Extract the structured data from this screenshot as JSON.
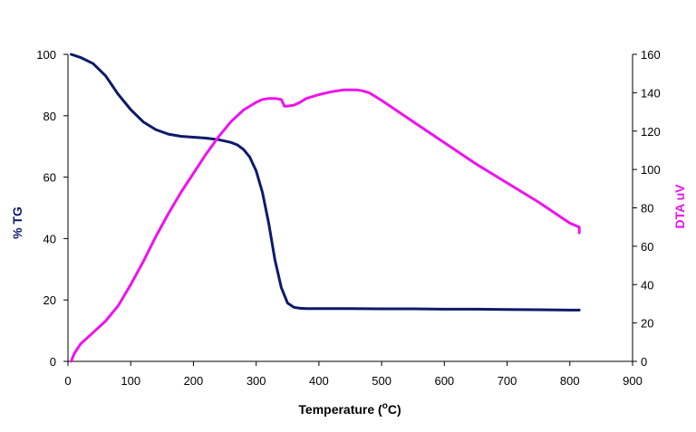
{
  "chart_data": {
    "type": "line",
    "title": "",
    "xlabel_main": "Temperature (",
    "xlabel_sup": "o",
    "xlabel_end": "C)",
    "ylabel_left": "% TG",
    "ylabel_right": "DTA uV",
    "xlim": [
      0,
      900
    ],
    "ylim_left": [
      0,
      100
    ],
    "ylim_right": [
      0,
      160
    ],
    "x_ticks": [
      "0",
      "100",
      "200",
      "300",
      "400",
      "500",
      "600",
      "700",
      "800",
      "900"
    ],
    "y_left_ticks": [
      "0",
      "20",
      "40",
      "60",
      "80",
      "100"
    ],
    "y_right_ticks": [
      "0",
      "20",
      "40",
      "60",
      "80",
      "100",
      "120",
      "140",
      "160"
    ],
    "grid": false,
    "legend": "none",
    "series": [
      {
        "axis": "left",
        "color": "#0d1a6b",
        "x": [
          5,
          20,
          40,
          60,
          80,
          100,
          120,
          140,
          160,
          180,
          200,
          220,
          240,
          260,
          270,
          280,
          290,
          300,
          310,
          320,
          330,
          340,
          350,
          360,
          370,
          380,
          400,
          450,
          500,
          550,
          600,
          650,
          700,
          750,
          800,
          815
        ],
        "y": [
          100,
          99,
          97,
          93,
          87,
          82,
          78,
          75.5,
          74,
          73.3,
          73,
          72.7,
          72.2,
          71.3,
          70.5,
          69,
          66.5,
          62,
          55,
          45,
          33,
          24,
          19,
          17.6,
          17.3,
          17.2,
          17.2,
          17.2,
          17.1,
          17.1,
          17,
          17,
          16.9,
          16.8,
          16.7,
          16.7
        ]
      },
      {
        "axis": "right",
        "color": "#ee12ee",
        "x": [
          5,
          10,
          20,
          40,
          60,
          80,
          100,
          120,
          140,
          160,
          180,
          200,
          220,
          240,
          260,
          280,
          300,
          310,
          320,
          330,
          340,
          345,
          350,
          360,
          370,
          380,
          400,
          420,
          440,
          460,
          470,
          480,
          500,
          550,
          600,
          650,
          700,
          750,
          800,
          815,
          815
        ],
        "y": [
          0,
          4,
          9,
          15,
          21,
          29,
          40,
          52,
          65,
          77,
          88,
          98,
          108,
          117,
          125,
          131,
          135,
          136.5,
          137,
          137,
          136.5,
          133,
          133,
          133.5,
          135,
          137,
          139,
          140.5,
          141.5,
          141.5,
          141,
          140,
          136,
          125,
          114,
          103,
          93,
          83,
          72,
          70,
          67
        ]
      }
    ]
  }
}
